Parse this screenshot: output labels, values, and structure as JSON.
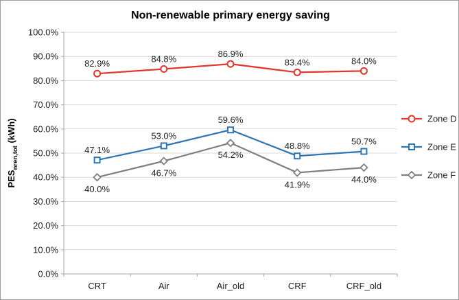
{
  "chart_data": {
    "type": "line",
    "title": "Non-renewable primary energy saving",
    "categories": [
      "CRT",
      "Air",
      "Air_old",
      "CRF",
      "CRF_old"
    ],
    "series": [
      {
        "name": "Zone D",
        "color": "#e0362c",
        "marker": "circle",
        "label_placement": "above",
        "values": [
          82.9,
          84.8,
          86.9,
          83.4,
          84.0
        ],
        "data_labels": [
          "82.9%",
          "84.8%",
          "86.9%",
          "83.4%",
          "84.0%"
        ]
      },
      {
        "name": "Zone E",
        "color": "#2e75b6",
        "marker": "square",
        "label_placement": "above",
        "values": [
          47.1,
          53.0,
          59.6,
          48.8,
          50.7
        ],
        "data_labels": [
          "47.1%",
          "53.0%",
          "59.6%",
          "48.8%",
          "50.7%"
        ]
      },
      {
        "name": "Zone F",
        "color": "#7f7f7f",
        "marker": "diamond",
        "label_placement": "below",
        "values": [
          40.0,
          46.7,
          54.2,
          41.9,
          44.0
        ],
        "data_labels": [
          "40.0%",
          "46.7%",
          "54.2%",
          "41.9%",
          "44.0%"
        ]
      }
    ],
    "ylabel": {
      "main": "PES",
      "sub": "nren,tot",
      "unit": " (kWh)"
    },
    "y_axis": {
      "min": 0,
      "max": 100,
      "step": 10,
      "tick_labels": [
        "0.0%",
        "10.0%",
        "20.0%",
        "30.0%",
        "40.0%",
        "50.0%",
        "60.0%",
        "70.0%",
        "80.0%",
        "90.0%",
        "100.0%"
      ]
    },
    "legend": {
      "position": "right",
      "entries": [
        "Zone D",
        "Zone E",
        "Zone F"
      ]
    },
    "grid": true,
    "styles": {
      "gridline_color": "#d9d9d9",
      "axis_color": "#a6a6a6",
      "text_color": "#1f1f1f",
      "background": "#ffffff",
      "border_color": "#9d9d9d"
    }
  }
}
